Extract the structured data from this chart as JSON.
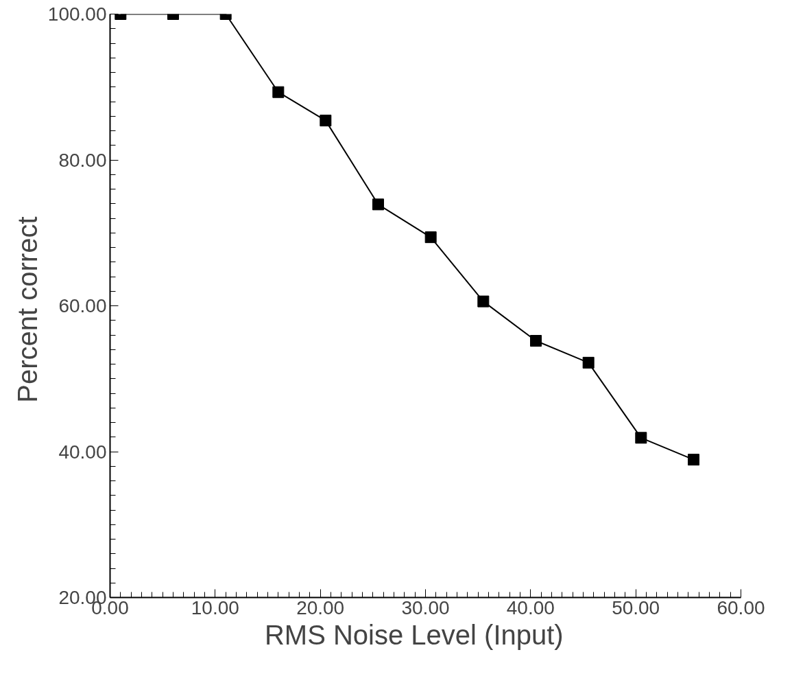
{
  "chart_data": {
    "type": "line",
    "xlabel": "RMS  Noise  Level  (Input)",
    "ylabel": "Percent  correct",
    "x": [
      1,
      6,
      11,
      16,
      20.5,
      25.5,
      30.5,
      35.5,
      40.5,
      45.5,
      50.5,
      55.5
    ],
    "values": [
      100,
      100,
      100,
      89.3,
      85.4,
      73.9,
      69.4,
      60.6,
      55.2,
      52.2,
      41.9,
      38.9
    ],
    "color": "#000000",
    "marker": "square",
    "line_style": "solid",
    "grid": false,
    "xlim": [
      0,
      60
    ],
    "ylim": [
      20,
      100
    ],
    "xticks": [
      {
        "value": 0,
        "label": "0.00"
      },
      {
        "value": 10,
        "label": "10.00"
      },
      {
        "value": 20,
        "label": "20.00"
      },
      {
        "value": 30,
        "label": "30.00"
      },
      {
        "value": 40,
        "label": "40.00"
      },
      {
        "value": 50,
        "label": "50.00"
      },
      {
        "value": 60,
        "label": "60.00"
      }
    ],
    "yticks": [
      {
        "value": 20,
        "label": "20.00"
      },
      {
        "value": 40,
        "label": "40.00"
      },
      {
        "value": 60,
        "label": "60.00"
      },
      {
        "value": 80,
        "label": "80.00"
      },
      {
        "value": 100,
        "label": "100.00"
      }
    ]
  }
}
